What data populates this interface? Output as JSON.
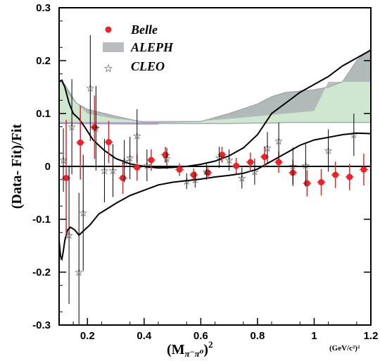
{
  "chart_data": {
    "type": "scatter",
    "ylabel": "(Data- Fit)/Fit",
    "xlabel_main": "(M",
    "xlabel_sub": "π⁻π⁰",
    "xlabel_close": ")",
    "xlabel_exp": "2",
    "x_unit": "(GeV/c²)²",
    "xlim": [
      0.1,
      1.2
    ],
    "ylim": [
      -0.3,
      0.3
    ],
    "x_ticks": [
      0.2,
      0.4,
      0.6,
      0.8,
      1.0,
      1.2
    ],
    "x_tick_labels": [
      "0.2",
      "0.4",
      "0.6",
      "0.8",
      "1",
      "1.2"
    ],
    "y_ticks": [
      0.3,
      0.2,
      0.1,
      0,
      -0.1,
      -0.2,
      -0.3
    ],
    "y_tick_labels": [
      "0.3",
      "0.2",
      "0.1",
      "0",
      "-0.1",
      "-0.2",
      "-0.3"
    ],
    "grid": false,
    "legend_position": "top-center",
    "legend": [
      {
        "label": "Belle",
        "marker": "filled-circle",
        "color": "#e8242b"
      },
      {
        "label": "ALEPH",
        "marker": "gray-band",
        "color": "#9aa0a6"
      },
      {
        "label": "CLEO",
        "marker": "open-star",
        "color": "#000000"
      }
    ],
    "colors": {
      "belle": "#e8242b",
      "aleph_band": "#cfe6d0",
      "aleph_band_edge": "#8a8f98",
      "cleo": "#000000"
    },
    "series": [
      {
        "name": "Belle",
        "points": [
          {
            "x": 0.125,
            "y": -0.022,
            "err": 0.11
          },
          {
            "x": 0.175,
            "y": 0.045,
            "err": 0.07
          },
          {
            "x": 0.225,
            "y": 0.074,
            "err": 0.06
          },
          {
            "x": 0.275,
            "y": 0.046,
            "err": 0.04
          },
          {
            "x": 0.325,
            "y": -0.022,
            "err": 0.03
          },
          {
            "x": 0.375,
            "y": -0.002,
            "err": 0.025
          },
          {
            "x": 0.425,
            "y": 0.012,
            "err": 0.02
          },
          {
            "x": 0.475,
            "y": 0.022,
            "err": 0.015
          },
          {
            "x": 0.525,
            "y": -0.006,
            "err": 0.012
          },
          {
            "x": 0.575,
            "y": -0.016,
            "err": 0.012
          },
          {
            "x": 0.625,
            "y": -0.012,
            "err": 0.012
          },
          {
            "x": 0.675,
            "y": 0.022,
            "err": 0.015
          },
          {
            "x": 0.725,
            "y": 0.001,
            "err": 0.015
          },
          {
            "x": 0.775,
            "y": 0.008,
            "err": 0.018
          },
          {
            "x": 0.825,
            "y": 0.018,
            "err": 0.02
          },
          {
            "x": 0.875,
            "y": 0.008,
            "err": 0.02
          },
          {
            "x": 0.925,
            "y": -0.012,
            "err": 0.025
          },
          {
            "x": 0.975,
            "y": -0.032,
            "err": 0.025
          },
          {
            "x": 1.025,
            "y": -0.03,
            "err": 0.025
          },
          {
            "x": 1.075,
            "y": -0.016,
            "err": 0.025
          },
          {
            "x": 1.125,
            "y": -0.02,
            "err": 0.025
          },
          {
            "x": 1.175,
            "y": -0.006,
            "err": 0.03
          }
        ]
      },
      {
        "name": "CLEO",
        "points": [
          {
            "x": 0.115,
            "y": 0.012,
            "err": 0.06
          },
          {
            "x": 0.135,
            "y": -0.13,
            "err": 0.13
          },
          {
            "x": 0.145,
            "y": 0.075,
            "err": 0.09
          },
          {
            "x": 0.17,
            "y": -0.2,
            "err": 0.15
          },
          {
            "x": 0.185,
            "y": -0.088,
            "err": 0.11
          },
          {
            "x": 0.21,
            "y": 0.148,
            "err": 0.1
          },
          {
            "x": 0.23,
            "y": 0.072,
            "err": 0.08
          },
          {
            "x": 0.26,
            "y": -0.008,
            "err": 0.06
          },
          {
            "x": 0.29,
            "y": -0.008,
            "err": 0.05
          },
          {
            "x": 0.33,
            "y": 0.01,
            "err": 0.04
          },
          {
            "x": 0.35,
            "y": 0.016,
            "err": 0.04
          },
          {
            "x": 0.375,
            "y": 0.058,
            "err": 0.05
          },
          {
            "x": 0.41,
            "y": 0.002,
            "err": 0.03
          },
          {
            "x": 0.48,
            "y": 0.015,
            "err": 0.02
          },
          {
            "x": 0.55,
            "y": -0.028,
            "err": 0.015
          },
          {
            "x": 0.58,
            "y": -0.025,
            "err": 0.015
          },
          {
            "x": 0.62,
            "y": -0.01,
            "err": 0.015
          },
          {
            "x": 0.665,
            "y": 0.017,
            "err": 0.02
          },
          {
            "x": 0.7,
            "y": 0.012,
            "err": 0.02
          },
          {
            "x": 0.745,
            "y": -0.022,
            "err": 0.02
          },
          {
            "x": 0.79,
            "y": -0.01,
            "err": 0.025
          },
          {
            "x": 0.835,
            "y": 0.035,
            "err": 0.03
          },
          {
            "x": 0.875,
            "y": 0.048,
            "err": 0.035
          },
          {
            "x": 0.925,
            "y": 0.001,
            "err": 0.035
          },
          {
            "x": 0.97,
            "y": 0.002,
            "err": 0.04
          },
          {
            "x": 1.05,
            "y": 0.03,
            "err": 0.04
          },
          {
            "x": 1.14,
            "y": 0.06,
            "err": 0.04
          }
        ]
      }
    ],
    "aleph_band": {
      "x": [
        0.1,
        0.12,
        0.16,
        0.2,
        0.3,
        0.4,
        0.5,
        0.6,
        0.7,
        0.8,
        0.85,
        0.9,
        1.0,
        1.05,
        1.1,
        1.15,
        1.2
      ],
      "upper": [
        0.165,
        0.155,
        0.12,
        0.108,
        0.095,
        0.083,
        0.084,
        0.085,
        0.1,
        0.118,
        0.132,
        0.14,
        0.145,
        0.15,
        0.16,
        0.2,
        0.222
      ],
      "lower": [
        0.082,
        0.082,
        0.082,
        0.082,
        0.082,
        0.081,
        0.081,
        0.081,
        0.081,
        0.082,
        0.082,
        0.083,
        0.083,
        0.083,
        0.083,
        0.083,
        0.083
      ],
      "dark_top": {
        "x": [
          0.1,
          0.14,
          0.2,
          0.3,
          0.38,
          0.5,
          0.6,
          0.7,
          0.8,
          0.9,
          1.0,
          1.05,
          1.1,
          1.15,
          1.2
        ],
        "y": [
          0.165,
          0.13,
          0.1,
          0.09,
          0.086,
          0.086,
          0.086,
          0.09,
          0.095,
          0.1,
          0.105,
          0.16,
          0.16,
          0.16,
          0.16
        ]
      }
    },
    "curves": [
      {
        "x": [
          0.1,
          0.11,
          0.12,
          0.135,
          0.15,
          0.17,
          0.19,
          0.22,
          0.26,
          0.3,
          0.35,
          0.4,
          0.45,
          0.5,
          0.55,
          0.6,
          0.65,
          0.7,
          0.75,
          0.8,
          0.85,
          0.9,
          0.95,
          1.0,
          1.05,
          1.1,
          1.15,
          1.2
        ],
        "y": [
          0.16,
          0.163,
          0.15,
          0.12,
          0.1,
          0.09,
          0.075,
          0.05,
          0.03,
          0.015,
          0.005,
          0.0,
          -0.003,
          -0.002,
          0.0,
          0.004,
          0.01,
          0.02,
          0.035,
          0.06,
          0.1,
          0.12,
          0.14,
          0.155,
          0.17,
          0.19,
          0.205,
          0.22
        ]
      },
      {
        "x": [
          0.1,
          0.105,
          0.11,
          0.115,
          0.12,
          0.13,
          0.14,
          0.155,
          0.17,
          0.19,
          0.21,
          0.24,
          0.27,
          0.3,
          0.35,
          0.4,
          0.45,
          0.5,
          0.55,
          0.6,
          0.65,
          0.7,
          0.75,
          0.8,
          0.85,
          0.9,
          0.95,
          1.0,
          1.05,
          1.1,
          1.15,
          1.2
        ],
        "y": [
          -0.14,
          -0.17,
          -0.175,
          -0.16,
          -0.14,
          -0.12,
          -0.115,
          -0.12,
          -0.13,
          -0.12,
          -0.11,
          -0.09,
          -0.08,
          -0.07,
          -0.055,
          -0.045,
          -0.035,
          -0.03,
          -0.027,
          -0.024,
          -0.02,
          -0.017,
          -0.013,
          -0.005,
          0.01,
          0.025,
          0.04,
          0.05,
          0.055,
          0.06,
          0.063,
          0.062
        ]
      }
    ]
  }
}
